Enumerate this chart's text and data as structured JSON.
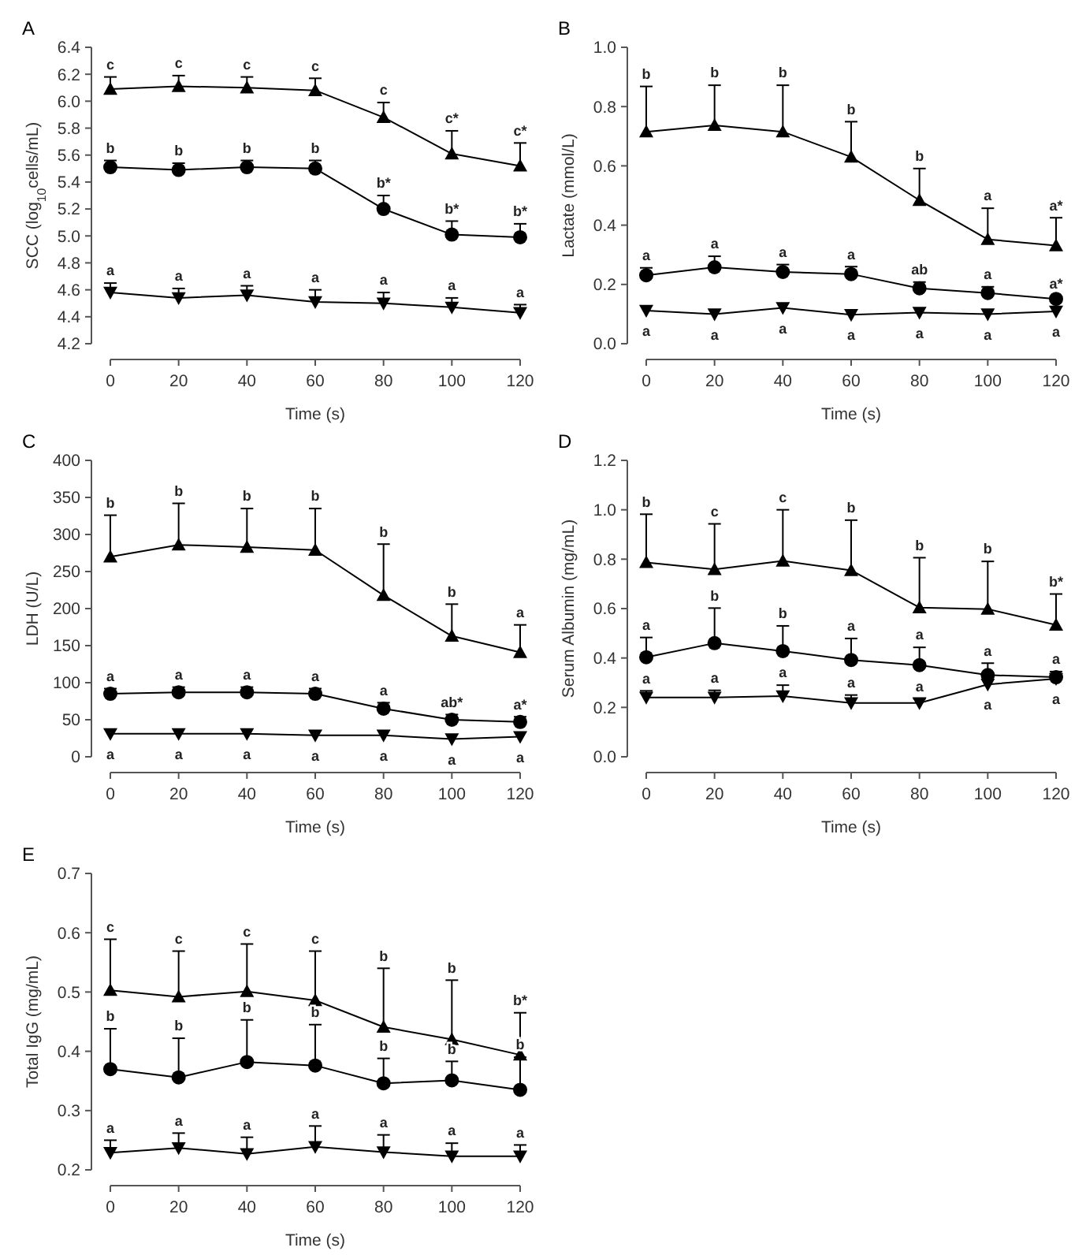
{
  "chart_data": [
    {
      "type": "line",
      "title": "A",
      "xlabel": "Time (s)",
      "ylabel": "SCC (log$_{10}$cells/mL)",
      "x": [
        0,
        20,
        40,
        60,
        80,
        100,
        120
      ],
      "xlim": [
        0,
        120
      ],
      "xticks": [
        0,
        20,
        40,
        60,
        80,
        100,
        120
      ],
      "ylim": [
        4.2,
        6.4
      ],
      "yticks": [
        {
          "value": 4.2,
          "label": "4.2"
        },
        {
          "value": 4.4,
          "label": "4.4"
        },
        {
          "value": 4.6,
          "label": "4.6"
        },
        {
          "value": 4.8,
          "label": "4.8"
        },
        {
          "value": 5.0,
          "label": "5.0"
        },
        {
          "value": 5.2,
          "label": "5.2"
        },
        {
          "value": 5.4,
          "label": "5.4"
        },
        {
          "value": 5.6,
          "label": "5.6"
        },
        {
          "value": 5.8,
          "label": "5.8"
        },
        {
          "value": 6.0,
          "label": "6.0"
        },
        {
          "value": 6.2,
          "label": "6.2"
        },
        {
          "value": 6.4,
          "label": "6.4"
        }
      ],
      "grid": false,
      "series": [
        {
          "color": "#000000",
          "marker": "triangle",
          "values": [
            6.09,
            6.11,
            6.1,
            6.08,
            5.88,
            5.61,
            5.52
          ],
          "errors": [
            [
              6.09,
              6.18
            ],
            [
              6.11,
              6.19
            ],
            [
              6.1,
              6.18
            ],
            [
              6.08,
              6.17
            ],
            [
              5.88,
              5.99
            ],
            [
              5.61,
              5.78
            ],
            [
              5.52,
              5.69
            ]
          ]
        },
        {
          "color": "#000000",
          "marker": "circle",
          "values": [
            5.51,
            5.49,
            5.51,
            5.5,
            5.2,
            5.01,
            4.99
          ],
          "errors": [
            [
              5.51,
              5.56
            ],
            [
              5.49,
              5.54
            ],
            [
              5.51,
              5.56
            ],
            [
              5.5,
              5.56
            ],
            [
              5.2,
              5.3
            ],
            [
              5.01,
              5.11
            ],
            [
              4.99,
              5.09
            ]
          ]
        },
        {
          "color": "#000000",
          "marker": "triangle-down",
          "values": [
            4.58,
            4.54,
            4.56,
            4.51,
            4.5,
            4.47,
            4.43
          ],
          "errors": [
            [
              4.58,
              4.65
            ],
            [
              4.54,
              4.61
            ],
            [
              4.56,
              4.63
            ],
            [
              4.51,
              4.6
            ],
            [
              4.5,
              4.58
            ],
            [
              4.47,
              4.54
            ],
            [
              4.43,
              4.49
            ]
          ]
        }
      ],
      "annotations": [
        {
          "text": "c",
          "x": 0,
          "y": 6.18
        },
        {
          "text": "c",
          "x": 20,
          "y": 6.19
        },
        {
          "text": "c",
          "x": 40,
          "y": 6.18
        },
        {
          "text": "c",
          "x": 60,
          "y": 6.17
        },
        {
          "text": "c",
          "x": 80,
          "y": 5.99
        },
        {
          "text": "c*",
          "x": 100,
          "y": 5.78
        },
        {
          "text": "c*",
          "x": 120,
          "y": 5.69
        },
        {
          "text": "b",
          "x": 0,
          "y": 5.56
        },
        {
          "text": "b",
          "x": 20,
          "y": 5.54
        },
        {
          "text": "b",
          "x": 40,
          "y": 5.56
        },
        {
          "text": "b",
          "x": 60,
          "y": 5.56
        },
        {
          "text": "b*",
          "x": 80,
          "y": 5.3
        },
        {
          "text": "b*",
          "x": 100,
          "y": 5.11
        },
        {
          "text": "b*",
          "x": 120,
          "y": 5.09
        },
        {
          "text": "a",
          "x": 0,
          "y": 4.65
        },
        {
          "text": "a",
          "x": 20,
          "y": 4.61
        },
        {
          "text": "a",
          "x": 40,
          "y": 4.63
        },
        {
          "text": "a",
          "x": 60,
          "y": 4.6
        },
        {
          "text": "a",
          "x": 80,
          "y": 4.58
        },
        {
          "text": "a",
          "x": 100,
          "y": 4.54
        },
        {
          "text": "a",
          "x": 120,
          "y": 4.49
        }
      ]
    },
    {
      "type": "line",
      "title": "B",
      "xlabel": "Time (s)",
      "ylabel": "Lactate (mmol/L)",
      "x": [
        0,
        20,
        40,
        60,
        80,
        100,
        120
      ],
      "xlim": [
        0,
        120
      ],
      "xticks": [
        0,
        20,
        40,
        60,
        80,
        100,
        120
      ],
      "ylim": [
        0,
        1
      ],
      "yticks": [
        {
          "value": 0,
          "label": "0.0"
        },
        {
          "value": 0.2,
          "label": "0.2"
        },
        {
          "value": 0.4,
          "label": "0.4"
        },
        {
          "value": 0.6,
          "label": "0.6"
        },
        {
          "value": 0.8,
          "label": "0.8"
        },
        {
          "value": 1,
          "label": "1.0"
        }
      ],
      "grid": false,
      "series": [
        {
          "color": "#000000",
          "marker": "triangle",
          "values": [
            0.715,
            0.737,
            0.715,
            0.63,
            0.484,
            0.352,
            0.331
          ],
          "errors": [
            [
              0.715,
              0.868
            ],
            [
              0.737,
              0.872
            ],
            [
              0.715,
              0.872
            ],
            [
              0.63,
              0.749
            ],
            [
              0.484,
              0.591
            ],
            [
              0.352,
              0.457
            ],
            [
              0.331,
              0.425
            ]
          ]
        },
        {
          "color": "#000000",
          "marker": "circle",
          "values": [
            0.231,
            0.258,
            0.242,
            0.235,
            0.187,
            0.171,
            0.151
          ],
          "errors": [
            [
              0.231,
              0.256
            ],
            [
              0.258,
              0.295
            ],
            [
              0.242,
              0.267
            ],
            [
              0.235,
              0.26
            ],
            [
              0.187,
              0.208
            ],
            [
              0.171,
              0.192
            ],
            null
          ]
        },
        {
          "color": "#000000",
          "marker": "triangle-down",
          "values": [
            0.112,
            0.1,
            0.121,
            0.098,
            0.105,
            0.1,
            0.109
          ]
        }
      ],
      "annotations": [
        {
          "text": "b",
          "x": 0,
          "y": 0.868
        },
        {
          "text": "b",
          "x": 20,
          "y": 0.872
        },
        {
          "text": "b",
          "x": 40,
          "y": 0.872
        },
        {
          "text": "b",
          "x": 60,
          "y": 0.749
        },
        {
          "text": "b",
          "x": 80,
          "y": 0.591
        },
        {
          "text": "a",
          "x": 100,
          "y": 0.457
        },
        {
          "text": "a*",
          "x": 120,
          "y": 0.425
        },
        {
          "text": "a",
          "x": 0,
          "y": 0.256
        },
        {
          "text": "a",
          "x": 20,
          "y": 0.295
        },
        {
          "text": "a",
          "x": 40,
          "y": 0.267
        },
        {
          "text": "a",
          "x": 60,
          "y": 0.26
        },
        {
          "text": "ab",
          "x": 80,
          "y": 0.208
        },
        {
          "text": "a",
          "x": 100,
          "y": 0.192
        },
        {
          "text": "a*",
          "x": 120,
          "y": 0.151
        },
        {
          "text": "a",
          "x": 0,
          "y": 0.112
        },
        {
          "text": "a",
          "x": 20,
          "y": 0.1
        },
        {
          "text": "a",
          "x": 40,
          "y": 0.121
        },
        {
          "text": "a",
          "x": 60,
          "y": 0.098
        },
        {
          "text": "a",
          "x": 80,
          "y": 0.105
        },
        {
          "text": "a",
          "x": 100,
          "y": 0.1
        },
        {
          "text": "a",
          "x": 120,
          "y": 0.109
        }
      ]
    },
    {
      "type": "line",
      "title": "C",
      "xlabel": "Time (s)",
      "ylabel": "LDH (U/L)",
      "x": [
        0,
        20,
        40,
        60,
        80,
        100,
        120
      ],
      "xlim": [
        0,
        120
      ],
      "xticks": [
        0,
        20,
        40,
        60,
        80,
        100,
        120
      ],
      "ylim": [
        0,
        400
      ],
      "yticks": [
        0,
        50,
        100,
        150,
        200,
        250,
        300,
        350,
        400
      ],
      "grid": false,
      "series": [
        {
          "color": "#000000",
          "marker": "triangle",
          "values": [
            270,
            286,
            283,
            279,
            218,
            163,
            141
          ],
          "errors": [
            [
              270,
              326
            ],
            [
              286,
              342
            ],
            [
              283,
              335
            ],
            [
              279,
              335
            ],
            [
              218,
              287
            ],
            [
              163,
              206
            ],
            [
              141,
              178
            ]
          ]
        },
        {
          "color": "#000000",
          "marker": "circle",
          "values": [
            85,
            87,
            87,
            85,
            65,
            50,
            47
          ],
          "errors": [
            [
              85,
              92
            ],
            [
              87,
              94
            ],
            [
              87,
              94
            ],
            [
              85,
              92
            ],
            [
              65,
              73
            ],
            [
              50,
              57
            ],
            [
              47,
              54
            ]
          ]
        },
        {
          "color": "#000000",
          "marker": "triangle-down",
          "values": [
            31,
            31,
            31,
            29,
            29,
            24,
            27
          ]
        }
      ],
      "annotations": [
        {
          "text": "b",
          "x": 0,
          "y": 326
        },
        {
          "text": "b",
          "x": 20,
          "y": 342
        },
        {
          "text": "b",
          "x": 40,
          "y": 335
        },
        {
          "text": "b",
          "x": 60,
          "y": 335
        },
        {
          "text": "b",
          "x": 80,
          "y": 287
        },
        {
          "text": "b",
          "x": 100,
          "y": 206
        },
        {
          "text": "a",
          "x": 120,
          "y": 178
        },
        {
          "text": "a",
          "x": 0,
          "y": 92
        },
        {
          "text": "a",
          "x": 20,
          "y": 94
        },
        {
          "text": "a",
          "x": 40,
          "y": 94
        },
        {
          "text": "a",
          "x": 60,
          "y": 92
        },
        {
          "text": "a",
          "x": 80,
          "y": 73
        },
        {
          "text": "ab*",
          "x": 100,
          "y": 57
        },
        {
          "text": "a*",
          "x": 120,
          "y": 54
        },
        {
          "text": "a",
          "x": 0,
          "y": 31
        },
        {
          "text": "a",
          "x": 20,
          "y": 31
        },
        {
          "text": "a",
          "x": 40,
          "y": 31
        },
        {
          "text": "a",
          "x": 60,
          "y": 29
        },
        {
          "text": "a",
          "x": 80,
          "y": 29
        },
        {
          "text": "a",
          "x": 100,
          "y": 24
        },
        {
          "text": "a",
          "x": 120,
          "y": 27
        }
      ]
    },
    {
      "type": "line",
      "title": "D",
      "xlabel": "Time (s)",
      "ylabel": "Serum Albumin (mg/mL)",
      "x": [
        0,
        20,
        40,
        60,
        80,
        100,
        120
      ],
      "xlim": [
        0,
        120
      ],
      "xticks": [
        0,
        20,
        40,
        60,
        80,
        100,
        120
      ],
      "ylim": [
        0,
        1.2
      ],
      "yticks": [
        {
          "value": 0,
          "label": "0.0"
        },
        {
          "value": 0.2,
          "label": "0.2"
        },
        {
          "value": 0.4,
          "label": "0.4"
        },
        {
          "value": 0.6,
          "label": "0.6"
        },
        {
          "value": 0.8,
          "label": "0.8"
        },
        {
          "value": 1,
          "label": "1.0"
        },
        {
          "value": 1.2,
          "label": "1.2"
        }
      ],
      "grid": false,
      "series": [
        {
          "color": "#000000",
          "marker": "triangle",
          "values": [
            0.787,
            0.759,
            0.793,
            0.755,
            0.604,
            0.598,
            0.534
          ],
          "errors": [
            [
              0.787,
              0.982
            ],
            [
              0.759,
              0.943
            ],
            [
              0.793,
              1.0
            ],
            [
              0.755,
              0.958
            ],
            [
              0.604,
              0.806
            ],
            [
              0.598,
              0.791
            ],
            [
              0.534,
              0.659
            ]
          ]
        },
        {
          "color": "#000000",
          "marker": "circle",
          "values": [
            0.403,
            0.46,
            0.428,
            0.392,
            0.371,
            0.331,
            0.322
          ],
          "errors": [
            [
              0.403,
              0.483
            ],
            [
              0.46,
              0.602
            ],
            [
              0.428,
              0.53
            ],
            [
              0.392,
              0.479
            ],
            [
              0.371,
              0.443
            ],
            [
              0.331,
              0.379
            ],
            [
              0.322,
              0.345
            ]
          ]
        },
        {
          "color": "#000000",
          "marker": "triangle-down",
          "values": [
            0.24,
            0.24,
            0.246,
            0.218,
            0.218,
            0.293,
            0.316
          ],
          "errors": [
            [
              0.24,
              0.267
            ],
            [
              0.24,
              0.269
            ],
            [
              0.246,
              0.29
            ],
            [
              0.218,
              0.25
            ],
            [
              0.218,
              0.235
            ],
            null,
            null
          ]
        }
      ],
      "annotations": [
        {
          "text": "b",
          "x": 0,
          "y": 0.982
        },
        {
          "text": "c",
          "x": 20,
          "y": 0.943
        },
        {
          "text": "c",
          "x": 40,
          "y": 1.0
        },
        {
          "text": "b",
          "x": 60,
          "y": 0.958
        },
        {
          "text": "b",
          "x": 80,
          "y": 0.806
        },
        {
          "text": "b",
          "x": 100,
          "y": 0.791
        },
        {
          "text": "b*",
          "x": 120,
          "y": 0.659
        },
        {
          "text": "a",
          "x": 0,
          "y": 0.483
        },
        {
          "text": "b",
          "x": 20,
          "y": 0.602
        },
        {
          "text": "b",
          "x": 40,
          "y": 0.53
        },
        {
          "text": "a",
          "x": 60,
          "y": 0.479
        },
        {
          "text": "a",
          "x": 80,
          "y": 0.443
        },
        {
          "text": "a",
          "x": 100,
          "y": 0.379
        },
        {
          "text": "a",
          "x": 120,
          "y": 0.345
        },
        {
          "text": "a",
          "x": 0,
          "y": 0.267
        },
        {
          "text": "a",
          "x": 20,
          "y": 0.269
        },
        {
          "text": "a",
          "x": 40,
          "y": 0.29
        },
        {
          "text": "a",
          "x": 60,
          "y": 0.25
        },
        {
          "text": "a",
          "x": 80,
          "y": 0.235
        },
        {
          "text": "a",
          "x": 100,
          "y": 0.293
        },
        {
          "text": "a",
          "x": 120,
          "y": 0.316
        }
      ]
    },
    {
      "type": "line",
      "title": "E",
      "xlabel": "Time (s)",
      "ylabel": "Total IgG (mg/mL)",
      "x": [
        0,
        20,
        40,
        60,
        80,
        100,
        120
      ],
      "xlim": [
        0,
        120
      ],
      "xticks": [
        0,
        20,
        40,
        60,
        80,
        100,
        120
      ],
      "ylim": [
        0.2,
        0.7
      ],
      "yticks": [
        0.2,
        0.3,
        0.4,
        0.5,
        0.6,
        0.7
      ],
      "grid": false,
      "series": [
        {
          "color": "#000000",
          "marker": "triangle",
          "values": [
            0.503,
            0.492,
            0.501,
            0.486,
            0.441,
            0.42,
            0.394
          ],
          "errors": [
            [
              0.503,
              0.589
            ],
            [
              0.492,
              0.569
            ],
            [
              0.501,
              0.581
            ],
            [
              0.486,
              0.569
            ],
            [
              0.441,
              0.54
            ],
            [
              0.42,
              0.52
            ],
            [
              0.394,
              0.465
            ]
          ]
        },
        {
          "color": "#000000",
          "marker": "circle",
          "values": [
            0.37,
            0.356,
            0.382,
            0.376,
            0.346,
            0.351,
            0.335
          ],
          "errors": [
            [
              0.37,
              0.438
            ],
            [
              0.356,
              0.422
            ],
            [
              0.382,
              0.453
            ],
            [
              0.376,
              0.445
            ],
            [
              0.346,
              0.388
            ],
            [
              0.351,
              0.383
            ],
            [
              0.335,
              0.39
            ]
          ]
        },
        {
          "color": "#000000",
          "marker": "triangle-down",
          "values": [
            0.229,
            0.237,
            0.227,
            0.239,
            0.23,
            0.223,
            0.223
          ],
          "errors": [
            [
              0.229,
              0.25
            ],
            [
              0.237,
              0.262
            ],
            [
              0.227,
              0.255
            ],
            [
              0.239,
              0.274
            ],
            [
              0.23,
              0.259
            ],
            [
              0.223,
              0.245
            ],
            [
              0.223,
              0.242
            ]
          ]
        }
      ],
      "annotations": [
        {
          "text": "c",
          "x": 0,
          "y": 0.589
        },
        {
          "text": "c",
          "x": 20,
          "y": 0.569
        },
        {
          "text": "c",
          "x": 40,
          "y": 0.581
        },
        {
          "text": "c",
          "x": 60,
          "y": 0.569
        },
        {
          "text": "b",
          "x": 80,
          "y": 0.54
        },
        {
          "text": "b",
          "x": 100,
          "y": 0.52
        },
        {
          "text": "b*",
          "x": 120,
          "y": 0.465
        },
        {
          "text": "b",
          "x": 0,
          "y": 0.438
        },
        {
          "text": "b",
          "x": 20,
          "y": 0.422
        },
        {
          "text": "b",
          "x": 40,
          "y": 0.453
        },
        {
          "text": "b",
          "x": 60,
          "y": 0.445
        },
        {
          "text": "b",
          "x": 80,
          "y": 0.388
        },
        {
          "text": "b",
          "x": 100,
          "y": 0.383
        },
        {
          "text": "b",
          "x": 120,
          "y": 0.39
        },
        {
          "text": "a",
          "x": 0,
          "y": 0.25
        },
        {
          "text": "a",
          "x": 20,
          "y": 0.262
        },
        {
          "text": "a",
          "x": 40,
          "y": 0.255
        },
        {
          "text": "a",
          "x": 60,
          "y": 0.274
        },
        {
          "text": "a",
          "x": 80,
          "y": 0.259
        },
        {
          "text": "a",
          "x": 100,
          "y": 0.245
        },
        {
          "text": "a",
          "x": 120,
          "y": 0.242
        }
      ]
    }
  ]
}
